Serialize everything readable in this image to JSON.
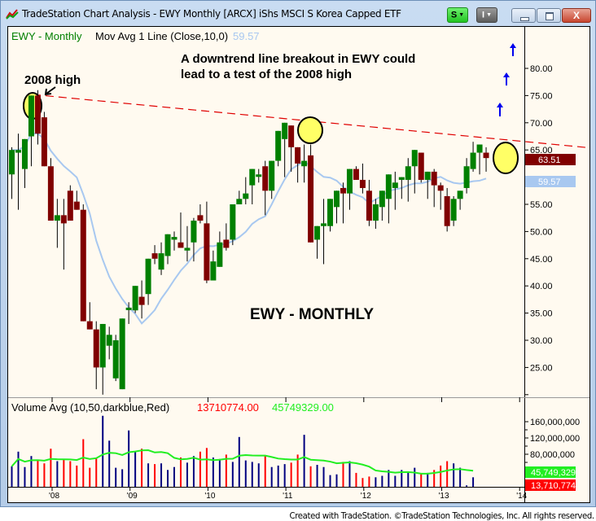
{
  "window": {
    "title": "TradeStation Chart Analysis - EWY Monthly [ARCX] iShs MSCI S Korea Capped ETF",
    "buttons": {
      "s_label": "S",
      "i_label": "I",
      "close_label": "X"
    }
  },
  "price_panel": {
    "symbol_label": "EWY - Monthly",
    "indicator_label": "Mov Avg 1 Line (Close,10,0)",
    "indicator_value": "59.57",
    "annotation_line1": "A downtrend line breakout in EWY could",
    "annotation_line2": "lead to a test of the 2008 high",
    "label_2008_high": "2008 high",
    "watermark": "EWY - MONTHLY",
    "last_price_badge": "63.51",
    "ma_badge": "59.57",
    "y_ticks": [
      "80.00",
      "75.00",
      "70.00",
      "65.00",
      "55.00",
      "50.00",
      "45.00",
      "40.00",
      "35.00",
      "30.00",
      "25.00"
    ]
  },
  "volume_panel": {
    "label": "Volume Avg (10,50,darkblue,Red)",
    "value_red": "13710774.00",
    "value_green": "45749329.00",
    "y_ticks": [
      "160,000,000",
      "120,000,000",
      "80,000,000"
    ],
    "avg_badge": "45,749,329",
    "vol_badge": "13,710,774"
  },
  "x_axis": {
    "ticks": [
      "'08",
      "'09",
      "'10",
      "'11",
      "'12",
      "'13",
      "'14"
    ]
  },
  "footer": "Created with TradeStation. ©TradeStation Technologies, Inc. All rights reserved.",
  "colors": {
    "up": "#008000",
    "down": "#800000",
    "ma": "#a8c8f0",
    "trend": "#e00000",
    "vol_up": "#000080",
    "vol_down": "#ff0000",
    "vol_avg": "#22ee22",
    "background": "#fffaf0"
  },
  "chart_data": [
    {
      "type": "candlestick",
      "title": "EWY - Monthly",
      "xlabel": "",
      "ylabel": "Price",
      "ylim": [
        20,
        85
      ],
      "x_tick_labels": [
        "'08",
        "'09",
        "'10",
        "'11",
        "'12",
        "'13",
        "'14"
      ],
      "y_tick_labels": [
        "25.00",
        "30.00",
        "35.00",
        "40.00",
        "45.00",
        "50.00",
        "55.00",
        "60.00",
        "65.00",
        "70.00",
        "75.00",
        "80.00"
      ],
      "series": [
        {
          "name": "EWY Monthly OHLC",
          "ohlc": [
            [
              60.5,
              65.5,
              56.0,
              65.0
            ],
            [
              64.5,
              68.0,
              54.0,
              65.0
            ],
            [
              61.5,
              67.0,
              58.0,
              67.0
            ],
            [
              67.5,
              72.5,
              62.0,
              75.0
            ],
            [
              75.0,
              76.0,
              66.0,
              68.0
            ],
            [
              71.0,
              72.0,
              62.5,
              62.0
            ],
            [
              62.0,
              63.5,
              53.0,
              52.0
            ],
            [
              52.0,
              56.0,
              47.0,
              53.0
            ],
            [
              53.0,
              56.0,
              43.0,
              51.5
            ],
            [
              57.5,
              58.5,
              56.0,
              52.0
            ],
            [
              55.5,
              57.5,
              55.5,
              54.0
            ],
            [
              54.0,
              55.0,
              40.0,
              33.5
            ],
            [
              33.5,
              37.0,
              32.0,
              32.0
            ],
            [
              32.0,
              33.5,
              21.0,
              25.0
            ],
            [
              25.0,
              33.0,
              20.0,
              33.0
            ],
            [
              29.0,
              32.5,
              26.5,
              31.0
            ],
            [
              23.0,
              31.0,
              22.5,
              30.0
            ],
            [
              21.0,
              34.0,
              21.0,
              34.0
            ],
            [
              36.0,
              37.0,
              33.0,
              36.0
            ],
            [
              35.5,
              40.0,
              35.0,
              40.0
            ],
            [
              38.0,
              41.0,
              34.0,
              36.5
            ],
            [
              38.5,
              45.0,
              36.5,
              45.0
            ],
            [
              46.0,
              47.5,
              44.0,
              45.0
            ],
            [
              43.0,
              48.0,
              42.0,
              46.0
            ],
            [
              45.5,
              49.0,
              44.0,
              49.5
            ],
            [
              48.5,
              50.0,
              46.5,
              49.0
            ],
            [
              48.0,
              53.5,
              47.0,
              47.0
            ],
            [
              46.5,
              51.0,
              44.5,
              47.0
            ],
            [
              48.0,
              52.5,
              44.5,
              52.0
            ],
            [
              53.0,
              55.0,
              51.5,
              52.0
            ],
            [
              51.5,
              55.5,
              40.5,
              41.0
            ],
            [
              41.0,
              46.5,
              42.5,
              44.5
            ],
            [
              43.5,
              50.0,
              44.0,
              48.0
            ],
            [
              48.5,
              51.5,
              46.5,
              47.0
            ],
            [
              48.5,
              55.0,
              47.5,
              55.0
            ],
            [
              55.0,
              57.5,
              55.0,
              56.0
            ],
            [
              56.0,
              60.0,
              55.0,
              57.0
            ],
            [
              58.5,
              61.5,
              55.0,
              61.5
            ],
            [
              60.5,
              61.5,
              59.0,
              60.5
            ],
            [
              62.0,
              63.0,
              53.0,
              57.5
            ],
            [
              57.5,
              63.0,
              56.0,
              63.0
            ],
            [
              63.0,
              65.5,
              62.0,
              68.5
            ],
            [
              67.0,
              69.0,
              60.0,
              70.0
            ],
            [
              69.5,
              68.0,
              61.0,
              65.5
            ],
            [
              65.5,
              64.0,
              59.0,
              62.5
            ],
            [
              62.0,
              66.0,
              59.0,
              63.0
            ],
            [
              64.0,
              66.0,
              57.0,
              48.0
            ],
            [
              48.5,
              48.0,
              45.0,
              51.0
            ],
            [
              51.0,
              56.0,
              44.0,
              51.5
            ],
            [
              51.0,
              56.0,
              50.0,
              56.0
            ],
            [
              54.5,
              56.0,
              51.5,
              57.5
            ],
            [
              58.0,
              59.0,
              51.5,
              57.0
            ],
            [
              57.0,
              61.0,
              54.0,
              61.5
            ],
            [
              61.5,
              62.0,
              59.5,
              59.5
            ],
            [
              59.5,
              62.5,
              57.0,
              58.0
            ],
            [
              57.5,
              59.5,
              51.0,
              52.0
            ],
            [
              52.0,
              56.0,
              50.5,
              55.0
            ],
            [
              54.5,
              56.5,
              52.0,
              57.5
            ],
            [
              56.0,
              58.5,
              51.5,
              60.5
            ],
            [
              58.0,
              61.0,
              54.0,
              59.0
            ],
            [
              59.5,
              60.0,
              56.0,
              60.0
            ],
            [
              59.5,
              63.5,
              55.5,
              62.0
            ],
            [
              62.0,
              65.0,
              57.0,
              65.0
            ],
            [
              64.5,
              64.0,
              59.0,
              59.5
            ],
            [
              59.5,
              61.0,
              56.0,
              61.0
            ],
            [
              61.0,
              61.5,
              54.5,
              58.5
            ],
            [
              58.5,
              59.0,
              54.0,
              57.5
            ],
            [
              56.5,
              58.0,
              50.0,
              51.0
            ],
            [
              52.0,
              56.5,
              51.0,
              56.0
            ],
            [
              56.0,
              57.0,
              54.0,
              57.5
            ],
            [
              58.0,
              63.5,
              57.0,
              62.0
            ],
            [
              61.5,
              66.5,
              61.0,
              64.5
            ],
            [
              64.5,
              66.0,
              60.5,
              66.0
            ],
            [
              64.5,
              65.5,
              61.0,
              63.51
            ]
          ]
        },
        {
          "name": "Mov Avg 1 Line (Close,10,0)",
          "last_value": 59.57
        },
        {
          "name": "Downtrend line",
          "points": [
            [
              2008.0,
              75.0
            ],
            [
              2014.0,
              66.0
            ]
          ]
        }
      ],
      "annotations": [
        "2008 high",
        "A downtrend line breakout in EWY could lead to a test of the 2008 high",
        "EWY - MONTHLY"
      ]
    },
    {
      "type": "bar",
      "title": "Volume Avg (10,50,darkblue,Red)",
      "ylabel": "Volume",
      "ylim": [
        0,
        180000000
      ],
      "y_tick_labels": [
        "80,000,000",
        "120,000,000",
        "160,000,000"
      ],
      "series": [
        {
          "name": "Volume (last)",
          "last_value": 13710774
        },
        {
          "name": "Volume Avg 50",
          "last_value": 45749329
        }
      ]
    }
  ]
}
